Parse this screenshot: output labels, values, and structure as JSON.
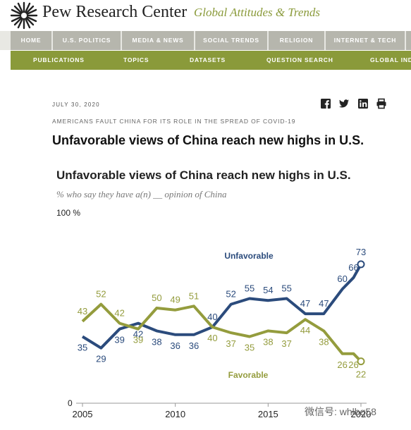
{
  "header": {
    "logo_text": "Pew Research Center",
    "logo_subtitle": "Global Attitudes & Trends"
  },
  "nav_primary": [
    "HOME",
    "U.S. POLITICS",
    "MEDIA & NEWS",
    "SOCIAL TRENDS",
    "RELIGION",
    "INTERNET & TECH",
    ""
  ],
  "nav_secondary": [
    "PUBLICATIONS",
    "TOPICS",
    "DATASETS",
    "QUESTION SEARCH",
    "GLOBAL INDI"
  ],
  "article": {
    "date": "JULY 30, 2020",
    "kicker": "AMERICANS FAULT CHINA FOR ITS ROLE IN THE SPREAD OF COVID-19",
    "headline": "Unfavorable views of China reach new highs in U.S.",
    "share_icons": [
      "facebook-icon",
      "twitter-icon",
      "linkedin-icon",
      "print-icon"
    ]
  },
  "chart_data": {
    "type": "line",
    "title": "Unfavorable views of China reach new highs in U.S.",
    "subtitle": "% who say they have a(n) __ opinion of China",
    "y_top_label": "100 %",
    "y_bottom_label": "0",
    "ylim": [
      0,
      100
    ],
    "x_ticks": [
      "2005",
      "2010",
      "2015",
      "2020"
    ],
    "series": [
      {
        "name": "Unfavorable",
        "color": "#2b4b7c",
        "points": [
          {
            "x": 2005,
            "y": 35,
            "label": "35"
          },
          {
            "x": 2006,
            "y": 29,
            "label": "29"
          },
          {
            "x": 2007,
            "y": 39,
            "label": "39"
          },
          {
            "x": 2008,
            "y": 42,
            "label": "42"
          },
          {
            "x": 2009,
            "y": 38,
            "label": "38"
          },
          {
            "x": 2010,
            "y": 36,
            "label": "36"
          },
          {
            "x": 2011,
            "y": 36,
            "label": "36"
          },
          {
            "x": 2012,
            "y": 40,
            "label": "40"
          },
          {
            "x": 2013,
            "y": 52,
            "label": "52"
          },
          {
            "x": 2014,
            "y": 55,
            "label": "55"
          },
          {
            "x": 2015,
            "y": 54,
            "label": "54"
          },
          {
            "x": 2016,
            "y": 55,
            "label": "55"
          },
          {
            "x": 2017,
            "y": 47,
            "label": "47"
          },
          {
            "x": 2018,
            "y": 47,
            "label": "47"
          },
          {
            "x": 2019,
            "y": 60,
            "label": "60"
          },
          {
            "x": 2019.6,
            "y": 66,
            "label": "66"
          },
          {
            "x": 2020,
            "y": 73,
            "label": "73"
          }
        ]
      },
      {
        "name": "Favorable",
        "color": "#949c3d",
        "points": [
          {
            "x": 2005,
            "y": 43,
            "label": "43"
          },
          {
            "x": 2006,
            "y": 52,
            "label": "52"
          },
          {
            "x": 2007,
            "y": 42,
            "label": "42"
          },
          {
            "x": 2008,
            "y": 39,
            "label": "39"
          },
          {
            "x": 2009,
            "y": 50,
            "label": "50"
          },
          {
            "x": 2010,
            "y": 49,
            "label": "49"
          },
          {
            "x": 2011,
            "y": 51,
            "label": "51"
          },
          {
            "x": 2012,
            "y": 40,
            "label": "40"
          },
          {
            "x": 2013,
            "y": 37,
            "label": "37"
          },
          {
            "x": 2014,
            "y": 35,
            "label": "35"
          },
          {
            "x": 2015,
            "y": 38,
            "label": "38"
          },
          {
            "x": 2016,
            "y": 37,
            "label": "37"
          },
          {
            "x": 2017,
            "y": 44,
            "label": "44"
          },
          {
            "x": 2018,
            "y": 38,
            "label": "38"
          },
          {
            "x": 2019,
            "y": 26,
            "label": "26"
          },
          {
            "x": 2019.6,
            "y": 26,
            "label": "26"
          },
          {
            "x": 2020,
            "y": 22,
            "label": "22"
          }
        ]
      }
    ]
  },
  "watermark": "微信号: whlbq58"
}
